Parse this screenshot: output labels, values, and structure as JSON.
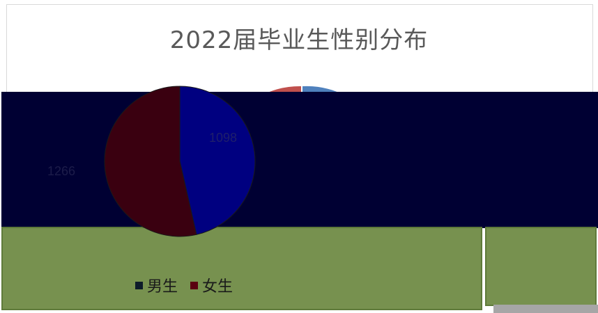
{
  "chart_data": {
    "type": "pie",
    "title": "2022届毕业生性别分布",
    "categories": [
      "男生",
      "女生"
    ],
    "values": [
      1098,
      1266
    ],
    "value_labels": [
      "1098",
      "1266"
    ],
    "colors": [
      "#000080",
      "#3a0010"
    ],
    "legend_position": "bottom"
  }
}
